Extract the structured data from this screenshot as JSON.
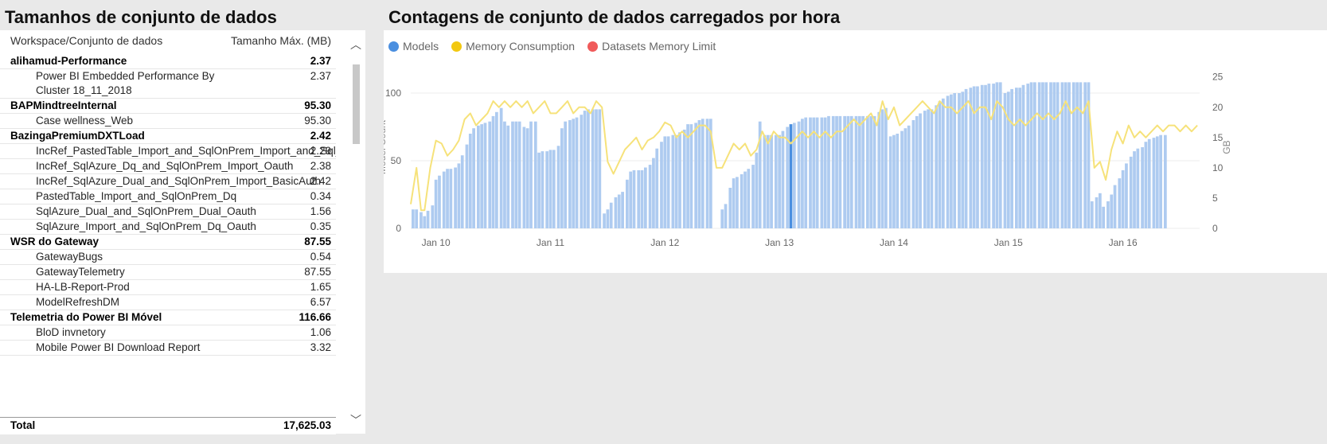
{
  "left": {
    "title": "Tamanhos de conjunto de dados",
    "header": {
      "col1": "Workspace/Conjunto de dados",
      "col2": "Tamanho Máx. (MB)"
    },
    "rows": [
      {
        "type": "group",
        "name": "alihamud-Performance",
        "value": "2.37"
      },
      {
        "type": "child",
        "name": "Power BI Embedded Performance By Cluster 18_11_2018",
        "value": "2.37"
      },
      {
        "type": "group",
        "name": "BAPMindtreeInternal",
        "value": "95.30"
      },
      {
        "type": "child",
        "name": "Case wellness_Web",
        "value": "95.30"
      },
      {
        "type": "group",
        "name": "BazingaPremiumDXTLoad",
        "value": "2.42"
      },
      {
        "type": "child",
        "name": "IncRef_PastedTable_Import_and_SqlOnPrem_Import_and_Sql_Azure_Dq_Oauth",
        "value": "2.29"
      },
      {
        "type": "child",
        "name": "IncRef_SqlAzure_Dq_and_SqlOnPrem_Import_Oauth",
        "value": "2.38"
      },
      {
        "type": "child",
        "name": "IncRef_SqlAzure_Dual_and_SqlOnPrem_Import_BasicAuth",
        "value": "2.42"
      },
      {
        "type": "child",
        "name": "PastedTable_Import_and_SqlOnPrem_Dq",
        "value": "0.34"
      },
      {
        "type": "child",
        "name": "SqlAzure_Dual_and_SqlOnPrem_Dual_Oauth",
        "value": "1.56"
      },
      {
        "type": "child",
        "name": "SqlAzure_Import_and_SqlOnPrem_Dq_Oauth",
        "value": "0.35"
      },
      {
        "type": "group",
        "name": "WSR do Gateway",
        "value": "87.55"
      },
      {
        "type": "child",
        "name": "GatewayBugs",
        "value": "0.54"
      },
      {
        "type": "child",
        "name": "GatewayTelemetry",
        "value": "87.55"
      },
      {
        "type": "child",
        "name": "HA-LB-Report-Prod",
        "value": "1.65"
      },
      {
        "type": "child",
        "name": "ModelRefreshDM",
        "value": "6.57"
      },
      {
        "type": "group",
        "name": "Telemetria do Power BI Móvel",
        "value": "116.66"
      },
      {
        "type": "child",
        "name": "BloD invnetory",
        "value": "1.06"
      },
      {
        "type": "child",
        "name": "Mobile Power BI Download Report",
        "value": "3.32"
      }
    ],
    "total": {
      "label": "Total",
      "value": "17,625.03"
    }
  },
  "right": {
    "title": "Contagens de conjunto de dados carregados por hora"
  },
  "chart_data": {
    "type": "bar",
    "legend": [
      {
        "name": "Models",
        "color": "#4a8fe0"
      },
      {
        "name": "Memory Consumption",
        "color": "#f2c811"
      },
      {
        "name": "Datasets Memory Limit",
        "color": "#f05a5a"
      }
    ],
    "legend_position": "top-left",
    "x_ticks": [
      "Jan 10",
      "Jan 11",
      "Jan 12",
      "Jan 13",
      "Jan 14",
      "Jan 15",
      "Jan 16"
    ],
    "y_left": {
      "label": "Model Count",
      "ticks": [
        0,
        50,
        100
      ],
      "range": [
        0,
        120
      ]
    },
    "y_right": {
      "label": "GB",
      "ticks": [
        0,
        5,
        10,
        15,
        20,
        25
      ],
      "range": [
        0,
        26.8
      ]
    },
    "x_start_day": 9.78,
    "x_end_day": 16.67,
    "models": [
      [
        9.8,
        14
      ],
      [
        9.83,
        14
      ],
      [
        9.87,
        12
      ],
      [
        9.9,
        9
      ],
      [
        9.93,
        13
      ],
      [
        9.97,
        17
      ],
      [
        10.0,
        36
      ],
      [
        10.03,
        39
      ],
      [
        10.07,
        42
      ],
      [
        10.1,
        44
      ],
      [
        10.13,
        44
      ],
      [
        10.17,
        45
      ],
      [
        10.2,
        48
      ],
      [
        10.23,
        54
      ],
      [
        10.27,
        62
      ],
      [
        10.3,
        70
      ],
      [
        10.33,
        74
      ],
      [
        10.37,
        76
      ],
      [
        10.4,
        77
      ],
      [
        10.43,
        78
      ],
      [
        10.47,
        79
      ],
      [
        10.5,
        83
      ],
      [
        10.53,
        86
      ],
      [
        10.57,
        89
      ],
      [
        10.6,
        79
      ],
      [
        10.63,
        76
      ],
      [
        10.67,
        79
      ],
      [
        10.7,
        79
      ],
      [
        10.73,
        79
      ],
      [
        10.77,
        75
      ],
      [
        10.8,
        74
      ],
      [
        10.83,
        79
      ],
      [
        10.87,
        79
      ],
      [
        10.9,
        56
      ],
      [
        10.93,
        57
      ],
      [
        10.97,
        57
      ],
      [
        11.0,
        58
      ],
      [
        11.03,
        58
      ],
      [
        11.07,
        61
      ],
      [
        11.1,
        74
      ],
      [
        11.13,
        79
      ],
      [
        11.17,
        80
      ],
      [
        11.2,
        81
      ],
      [
        11.23,
        82
      ],
      [
        11.27,
        84
      ],
      [
        11.3,
        87
      ],
      [
        11.33,
        88
      ],
      [
        11.37,
        88
      ],
      [
        11.4,
        88
      ],
      [
        11.43,
        88
      ],
      [
        11.47,
        11
      ],
      [
        11.5,
        14
      ],
      [
        11.53,
        19
      ],
      [
        11.57,
        23
      ],
      [
        11.6,
        25
      ],
      [
        11.63,
        27
      ],
      [
        11.67,
        36
      ],
      [
        11.7,
        42
      ],
      [
        11.73,
        43
      ],
      [
        11.77,
        43
      ],
      [
        11.8,
        43
      ],
      [
        11.83,
        45
      ],
      [
        11.87,
        47
      ],
      [
        11.9,
        52
      ],
      [
        11.93,
        59
      ],
      [
        11.97,
        64
      ],
      [
        12.0,
        68
      ],
      [
        12.03,
        68
      ],
      [
        12.07,
        69
      ],
      [
        12.1,
        69
      ],
      [
        12.13,
        71
      ],
      [
        12.17,
        73
      ],
      [
        12.2,
        77
      ],
      [
        12.23,
        77
      ],
      [
        12.27,
        78
      ],
      [
        12.3,
        80
      ],
      [
        12.33,
        81
      ],
      [
        12.37,
        81
      ],
      [
        12.4,
        81
      ],
      [
        12.5,
        14
      ],
      [
        12.53,
        18
      ],
      [
        12.57,
        30
      ],
      [
        12.6,
        37
      ],
      [
        12.63,
        38
      ],
      [
        12.67,
        40
      ],
      [
        12.7,
        42
      ],
      [
        12.73,
        44
      ],
      [
        12.77,
        47
      ],
      [
        12.8,
        56
      ],
      [
        12.83,
        79
      ],
      [
        12.87,
        69
      ],
      [
        12.9,
        69
      ],
      [
        12.93,
        69
      ],
      [
        12.97,
        69
      ],
      [
        13.0,
        69
      ],
      [
        13.03,
        72
      ],
      [
        13.07,
        75
      ],
      [
        13.1,
        77
      ],
      [
        13.13,
        78
      ],
      [
        13.17,
        79
      ],
      [
        13.2,
        81
      ],
      [
        13.23,
        82
      ],
      [
        13.27,
        82
      ],
      [
        13.3,
        82
      ],
      [
        13.33,
        82
      ],
      [
        13.37,
        82
      ],
      [
        13.4,
        82
      ],
      [
        13.43,
        83
      ],
      [
        13.47,
        83
      ],
      [
        13.5,
        83
      ],
      [
        13.53,
        83
      ],
      [
        13.57,
        83
      ],
      [
        13.6,
        83
      ],
      [
        13.63,
        83
      ],
      [
        13.67,
        83
      ],
      [
        13.7,
        83
      ],
      [
        13.73,
        83
      ],
      [
        13.77,
        83
      ],
      [
        13.8,
        83
      ],
      [
        13.83,
        83
      ],
      [
        13.87,
        86
      ],
      [
        13.9,
        88
      ],
      [
        13.93,
        89
      ],
      [
        13.97,
        68
      ],
      [
        14.0,
        69
      ],
      [
        14.03,
        70
      ],
      [
        14.07,
        72
      ],
      [
        14.1,
        74
      ],
      [
        14.13,
        76
      ],
      [
        14.17,
        80
      ],
      [
        14.2,
        83
      ],
      [
        14.23,
        85
      ],
      [
        14.27,
        87
      ],
      [
        14.3,
        88
      ],
      [
        14.33,
        88
      ],
      [
        14.37,
        91
      ],
      [
        14.4,
        94
      ],
      [
        14.43,
        96
      ],
      [
        14.47,
        98
      ],
      [
        14.5,
        99
      ],
      [
        14.53,
        100
      ],
      [
        14.57,
        100
      ],
      [
        14.6,
        101
      ],
      [
        14.63,
        103
      ],
      [
        14.67,
        104
      ],
      [
        14.7,
        105
      ],
      [
        14.73,
        105
      ],
      [
        14.77,
        106
      ],
      [
        14.8,
        106
      ],
      [
        14.83,
        107
      ],
      [
        14.87,
        107
      ],
      [
        14.9,
        108
      ],
      [
        14.93,
        108
      ],
      [
        14.97,
        100
      ],
      [
        15.0,
        101
      ],
      [
        15.03,
        103
      ],
      [
        15.07,
        104
      ],
      [
        15.1,
        104
      ],
      [
        15.13,
        106
      ],
      [
        15.17,
        107
      ],
      [
        15.2,
        108
      ],
      [
        15.23,
        108
      ],
      [
        15.27,
        108
      ],
      [
        15.3,
        108
      ],
      [
        15.33,
        108
      ],
      [
        15.37,
        108
      ],
      [
        15.4,
        108
      ],
      [
        15.43,
        108
      ],
      [
        15.47,
        108
      ],
      [
        15.5,
        108
      ],
      [
        15.53,
        108
      ],
      [
        15.57,
        108
      ],
      [
        15.6,
        108
      ],
      [
        15.63,
        108
      ],
      [
        15.67,
        108
      ],
      [
        15.7,
        108
      ],
      [
        15.73,
        20
      ],
      [
        15.77,
        23
      ],
      [
        15.8,
        26
      ],
      [
        15.83,
        16
      ],
      [
        15.87,
        20
      ],
      [
        15.9,
        25
      ],
      [
        15.93,
        32
      ],
      [
        15.97,
        37
      ],
      [
        16.0,
        43
      ],
      [
        16.03,
        48
      ],
      [
        16.07,
        53
      ],
      [
        16.1,
        57
      ],
      [
        16.13,
        59
      ],
      [
        16.17,
        60
      ],
      [
        16.2,
        64
      ],
      [
        16.23,
        66
      ],
      [
        16.27,
        67
      ],
      [
        16.3,
        68
      ],
      [
        16.33,
        69
      ],
      [
        16.37,
        69
      ]
    ],
    "memory_gb": [
      [
        9.78,
        4
      ],
      [
        9.83,
        10
      ],
      [
        9.87,
        3
      ],
      [
        9.9,
        3
      ],
      [
        9.95,
        10
      ],
      [
        10.0,
        14.5
      ],
      [
        10.05,
        14
      ],
      [
        10.1,
        12
      ],
      [
        10.15,
        13
      ],
      [
        10.2,
        14.5
      ],
      [
        10.25,
        18
      ],
      [
        10.3,
        19
      ],
      [
        10.35,
        17
      ],
      [
        10.4,
        18
      ],
      [
        10.45,
        19
      ],
      [
        10.5,
        21
      ],
      [
        10.55,
        20
      ],
      [
        10.6,
        21
      ],
      [
        10.65,
        20
      ],
      [
        10.7,
        21
      ],
      [
        10.75,
        20
      ],
      [
        10.8,
        21
      ],
      [
        10.85,
        19
      ],
      [
        10.9,
        20
      ],
      [
        10.95,
        21
      ],
      [
        11.0,
        19
      ],
      [
        11.05,
        19
      ],
      [
        11.1,
        20
      ],
      [
        11.15,
        21
      ],
      [
        11.2,
        19
      ],
      [
        11.25,
        20
      ],
      [
        11.3,
        20
      ],
      [
        11.35,
        19
      ],
      [
        11.4,
        21
      ],
      [
        11.45,
        20
      ],
      [
        11.5,
        11
      ],
      [
        11.55,
        9
      ],
      [
        11.6,
        11
      ],
      [
        11.65,
        13
      ],
      [
        11.7,
        14
      ],
      [
        11.75,
        15
      ],
      [
        11.8,
        13
      ],
      [
        11.85,
        14.5
      ],
      [
        11.9,
        15
      ],
      [
        11.95,
        16
      ],
      [
        12.0,
        17.5
      ],
      [
        12.05,
        17
      ],
      [
        12.1,
        15
      ],
      [
        12.15,
        16
      ],
      [
        12.2,
        15
      ],
      [
        12.25,
        16
      ],
      [
        12.3,
        17
      ],
      [
        12.35,
        17
      ],
      [
        12.4,
        16
      ],
      [
        12.45,
        10
      ],
      [
        12.5,
        10
      ],
      [
        12.55,
        12
      ],
      [
        12.6,
        14
      ],
      [
        12.65,
        13
      ],
      [
        12.7,
        14
      ],
      [
        12.75,
        12
      ],
      [
        12.8,
        13
      ],
      [
        12.85,
        16
      ],
      [
        12.9,
        14
      ],
      [
        12.95,
        16
      ],
      [
        13.0,
        15
      ],
      [
        13.05,
        15
      ],
      [
        13.1,
        14
      ],
      [
        13.15,
        15
      ],
      [
        13.2,
        16
      ],
      [
        13.25,
        15
      ],
      [
        13.3,
        16
      ],
      [
        13.35,
        15
      ],
      [
        13.4,
        16
      ],
      [
        13.45,
        15
      ],
      [
        13.5,
        16
      ],
      [
        13.55,
        16
      ],
      [
        13.6,
        17
      ],
      [
        13.65,
        18
      ],
      [
        13.7,
        17
      ],
      [
        13.75,
        18
      ],
      [
        13.8,
        19
      ],
      [
        13.85,
        17
      ],
      [
        13.9,
        21
      ],
      [
        13.95,
        18
      ],
      [
        14.0,
        20
      ],
      [
        14.05,
        17
      ],
      [
        14.1,
        18
      ],
      [
        14.15,
        19
      ],
      [
        14.2,
        20
      ],
      [
        14.25,
        21
      ],
      [
        14.3,
        20
      ],
      [
        14.35,
        19
      ],
      [
        14.4,
        21
      ],
      [
        14.45,
        20
      ],
      [
        14.5,
        20
      ],
      [
        14.55,
        19
      ],
      [
        14.6,
        20
      ],
      [
        14.65,
        21
      ],
      [
        14.7,
        19
      ],
      [
        14.75,
        20
      ],
      [
        14.8,
        20
      ],
      [
        14.85,
        18
      ],
      [
        14.9,
        21
      ],
      [
        14.95,
        20
      ],
      [
        15.0,
        18
      ],
      [
        15.05,
        17
      ],
      [
        15.1,
        18
      ],
      [
        15.15,
        17
      ],
      [
        15.2,
        18
      ],
      [
        15.25,
        19
      ],
      [
        15.3,
        18
      ],
      [
        15.35,
        19
      ],
      [
        15.4,
        18
      ],
      [
        15.45,
        19
      ],
      [
        15.5,
        21
      ],
      [
        15.55,
        19
      ],
      [
        15.6,
        20
      ],
      [
        15.65,
        19
      ],
      [
        15.7,
        21
      ],
      [
        15.75,
        10
      ],
      [
        15.8,
        11
      ],
      [
        15.85,
        8
      ],
      [
        15.9,
        13
      ],
      [
        15.95,
        16
      ],
      [
        16.0,
        14
      ],
      [
        16.05,
        17
      ],
      [
        16.1,
        15
      ],
      [
        16.15,
        16
      ],
      [
        16.2,
        15
      ],
      [
        16.25,
        16
      ],
      [
        16.3,
        17
      ],
      [
        16.35,
        16
      ],
      [
        16.4,
        17
      ],
      [
        16.45,
        17
      ],
      [
        16.5,
        16
      ],
      [
        16.55,
        17
      ],
      [
        16.6,
        16
      ],
      [
        16.65,
        17
      ]
    ],
    "highlight_bar_index": 97
  }
}
